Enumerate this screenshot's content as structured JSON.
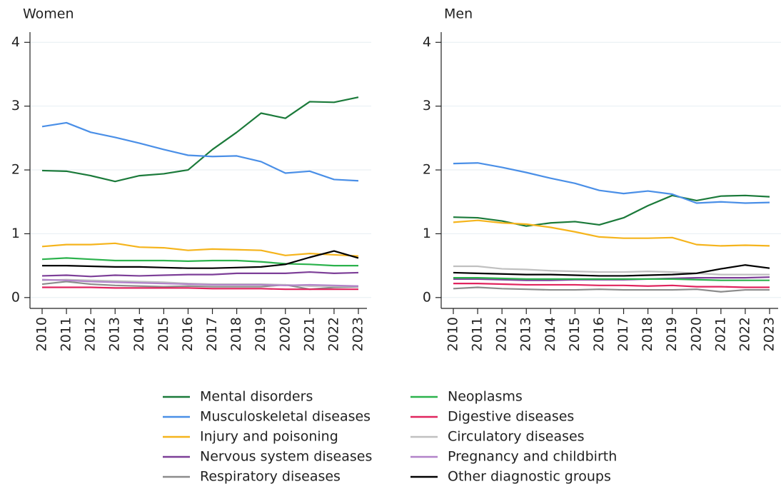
{
  "chart_data": [
    {
      "type": "line",
      "title": "Women",
      "categories": [
        "2010",
        "2011",
        "2012",
        "2013",
        "2014",
        "2015",
        "2016",
        "2017",
        "2018",
        "2019",
        "2020",
        "2021",
        "2022",
        "2023"
      ],
      "ylim": [
        -0.17,
        4.16
      ],
      "yticks": [
        0,
        1,
        2,
        3,
        4
      ],
      "grid": true,
      "series": [
        {
          "name": "Mental disorders",
          "color": "#1b7a3a",
          "values": [
            1.99,
            1.98,
            1.91,
            1.82,
            1.91,
            1.94,
            2.0,
            2.32,
            2.59,
            2.89,
            2.81,
            3.07,
            3.06,
            3.14
          ]
        },
        {
          "name": "Musculoskeletal diseases",
          "color": "#4a8fe7",
          "values": [
            2.68,
            2.74,
            2.59,
            2.51,
            2.42,
            2.32,
            2.23,
            2.21,
            2.22,
            2.13,
            1.95,
            1.98,
            1.85,
            1.83
          ]
        },
        {
          "name": "Injury and poisoning",
          "color": "#f5b41c",
          "values": [
            0.8,
            0.83,
            0.83,
            0.85,
            0.79,
            0.78,
            0.74,
            0.76,
            0.75,
            0.74,
            0.66,
            0.69,
            0.67,
            0.65
          ]
        },
        {
          "name": "Nervous system diseases",
          "color": "#7d3f98",
          "values": [
            0.34,
            0.35,
            0.33,
            0.35,
            0.34,
            0.35,
            0.36,
            0.36,
            0.38,
            0.38,
            0.38,
            0.4,
            0.38,
            0.39
          ]
        },
        {
          "name": "Respiratory diseases",
          "color": "#8c8c8c",
          "values": [
            0.21,
            0.25,
            0.21,
            0.19,
            0.18,
            0.17,
            0.18,
            0.17,
            0.17,
            0.17,
            0.2,
            0.13,
            0.16,
            0.17
          ]
        },
        {
          "name": "Neoplasms",
          "color": "#2bb24c",
          "values": [
            0.6,
            0.62,
            0.6,
            0.58,
            0.58,
            0.58,
            0.57,
            0.58,
            0.58,
            0.56,
            0.53,
            0.52,
            0.5,
            0.5
          ]
        },
        {
          "name": "Digestive diseases",
          "color": "#e0245e",
          "values": [
            0.16,
            0.16,
            0.16,
            0.15,
            0.15,
            0.15,
            0.15,
            0.14,
            0.14,
            0.14,
            0.13,
            0.13,
            0.13,
            0.13
          ]
        },
        {
          "name": "Circulatory diseases",
          "color": "#c0c0c0",
          "values": [
            0.27,
            0.28,
            0.27,
            0.26,
            0.25,
            0.24,
            0.22,
            0.21,
            0.21,
            0.21,
            0.2,
            0.18,
            0.18,
            0.18
          ]
        },
        {
          "name": "Pregnancy and childbirth",
          "color": "#b283c9",
          "values": [
            0.28,
            0.27,
            0.25,
            0.24,
            0.23,
            0.22,
            0.21,
            0.2,
            0.2,
            0.2,
            0.19,
            0.2,
            0.19,
            0.18
          ]
        },
        {
          "name": "Other diagnostic groups",
          "color": "#000000",
          "values": [
            0.5,
            0.5,
            0.49,
            0.48,
            0.48,
            0.47,
            0.46,
            0.46,
            0.47,
            0.48,
            0.52,
            0.63,
            0.73,
            0.62
          ]
        }
      ]
    },
    {
      "type": "line",
      "title": "Men",
      "categories": [
        "2010",
        "2011",
        "2012",
        "2013",
        "2014",
        "2015",
        "2016",
        "2017",
        "2018",
        "2019",
        "2020",
        "2021",
        "2022",
        "2023"
      ],
      "ylim": [
        -0.17,
        4.16
      ],
      "yticks": [
        0,
        1,
        2,
        3,
        4
      ],
      "grid": true,
      "series": [
        {
          "name": "Mental disorders",
          "color": "#1b7a3a",
          "values": [
            1.26,
            1.25,
            1.2,
            1.12,
            1.17,
            1.19,
            1.14,
            1.25,
            1.44,
            1.6,
            1.52,
            1.59,
            1.6,
            1.58
          ]
        },
        {
          "name": "Musculoskeletal diseases",
          "color": "#4a8fe7",
          "values": [
            2.1,
            2.11,
            2.04,
            1.96,
            1.87,
            1.79,
            1.68,
            1.63,
            1.67,
            1.62,
            1.48,
            1.5,
            1.48,
            1.49
          ]
        },
        {
          "name": "Injury and poisoning",
          "color": "#f5b41c",
          "values": [
            1.18,
            1.21,
            1.17,
            1.15,
            1.1,
            1.03,
            0.95,
            0.93,
            0.93,
            0.94,
            0.83,
            0.81,
            0.82,
            0.81
          ]
        },
        {
          "name": "Nervous system diseases",
          "color": "#7d3f98",
          "values": [
            0.29,
            0.29,
            0.28,
            0.27,
            0.27,
            0.28,
            0.28,
            0.28,
            0.29,
            0.3,
            0.31,
            0.31,
            0.31,
            0.32
          ]
        },
        {
          "name": "Respiratory diseases",
          "color": "#8c8c8c",
          "values": [
            0.14,
            0.16,
            0.14,
            0.13,
            0.12,
            0.12,
            0.13,
            0.12,
            0.12,
            0.12,
            0.13,
            0.09,
            0.12,
            0.12
          ]
        },
        {
          "name": "Neoplasms",
          "color": "#2bb24c",
          "values": [
            0.31,
            0.31,
            0.3,
            0.29,
            0.29,
            0.29,
            0.29,
            0.29,
            0.29,
            0.29,
            0.28,
            0.27,
            0.27,
            0.27
          ]
        },
        {
          "name": "Digestive diseases",
          "color": "#e0245e",
          "values": [
            0.22,
            0.22,
            0.21,
            0.2,
            0.2,
            0.2,
            0.19,
            0.19,
            0.18,
            0.19,
            0.17,
            0.17,
            0.16,
            0.16
          ]
        },
        {
          "name": "Circulatory diseases",
          "color": "#c0c0c0",
          "values": [
            0.49,
            0.49,
            0.45,
            0.44,
            0.42,
            0.41,
            0.4,
            0.4,
            0.41,
            0.4,
            0.38,
            0.36,
            0.36,
            0.36
          ]
        },
        {
          "name": "Other diagnostic groups",
          "color": "#000000",
          "values": [
            0.39,
            0.38,
            0.37,
            0.36,
            0.36,
            0.35,
            0.34,
            0.34,
            0.35,
            0.36,
            0.38,
            0.45,
            0.51,
            0.46
          ]
        }
      ]
    }
  ]
}
